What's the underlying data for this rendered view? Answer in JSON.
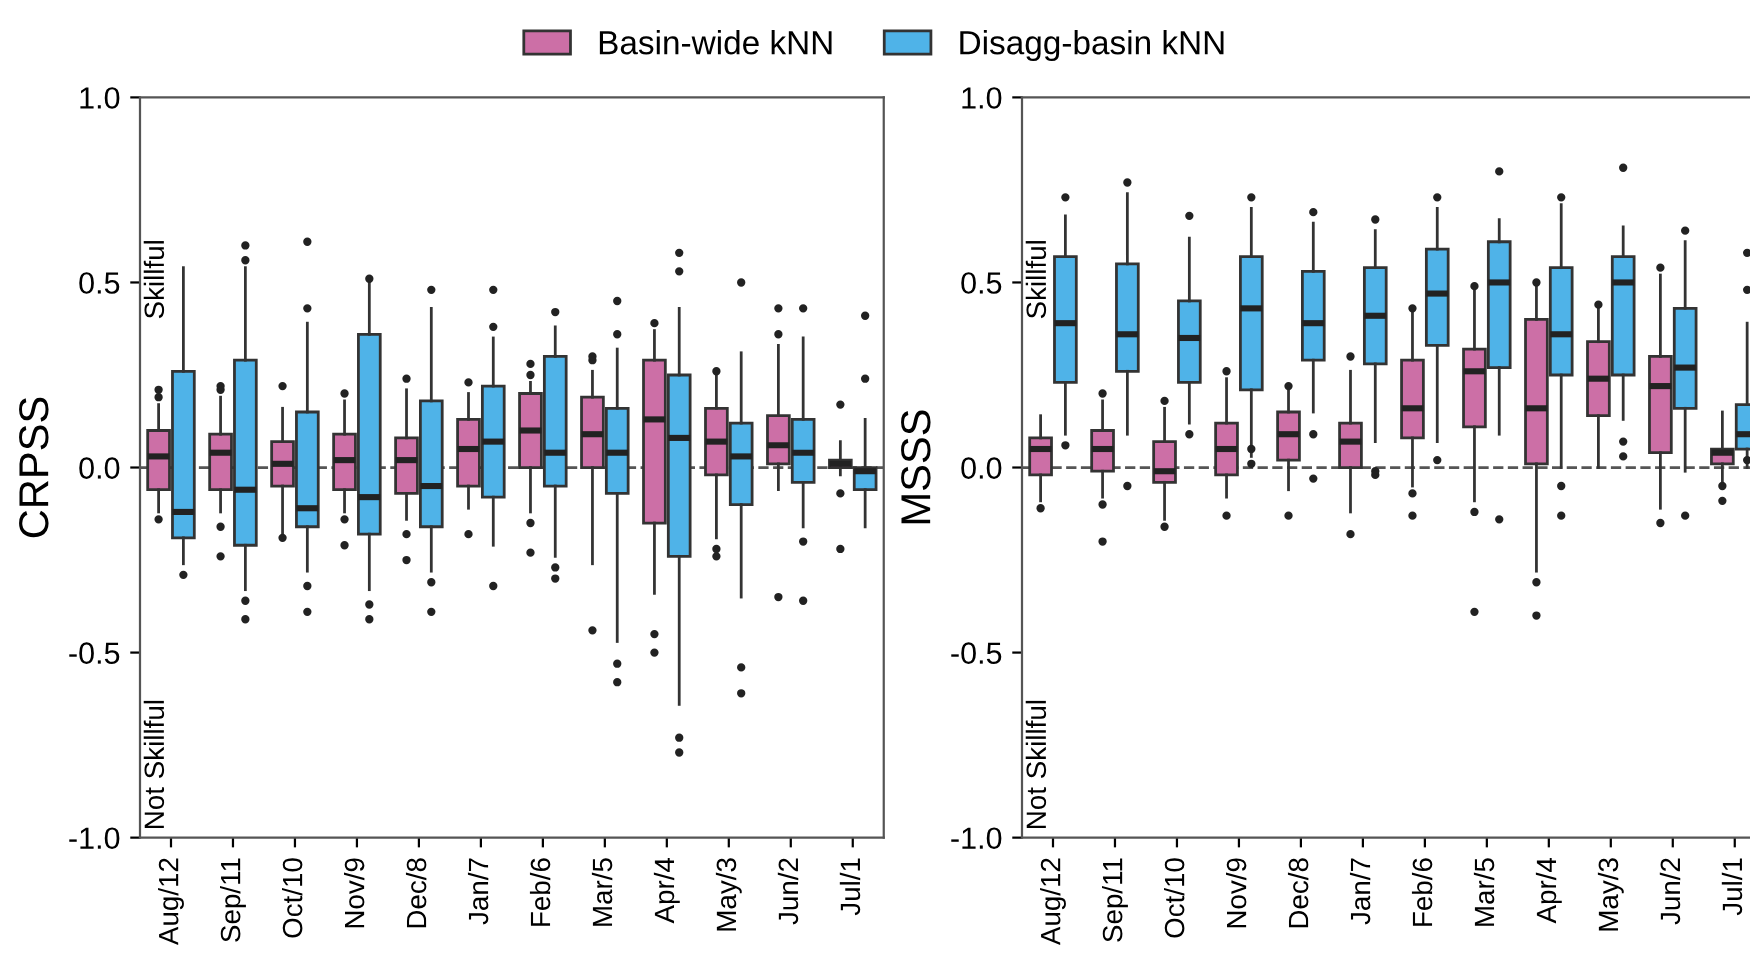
{
  "chart_data": [
    {
      "type": "box",
      "ylabel": "CRPSS",
      "legend": "top",
      "grid": false,
      "categories": [
        "Aug/12",
        "Sep/11",
        "Oct/10",
        "Nov/9",
        "Dec/8",
        "Jan/7",
        "Feb/6",
        "Mar/5",
        "Apr/4",
        "May/3",
        "Jun/2",
        "Jul/1"
      ],
      "ylim": [
        -1,
        1
      ],
      "yticks": [
        {
          "value": -1,
          "label": "-1.0"
        },
        {
          "value": -0.5,
          "label": "-0.5"
        },
        {
          "value": 0,
          "label": "0.0"
        },
        {
          "value": 0.5,
          "label": "0.5"
        },
        {
          "value": 1,
          "label": "1.0"
        }
      ],
      "ref_lines": [
        {
          "axis": "y",
          "value": 0,
          "line_style": "dashed",
          "color": "#555555"
        }
      ],
      "annotations": [
        "Skillful",
        "Not Skillful"
      ],
      "series": [
        {
          "name": "Basin-wide kNN",
          "color": "#cc6fa6",
          "boxes": [
            {
              "low": -0.12,
              "q1": -0.06,
              "median": 0.03,
              "q3": 0.1,
              "high": 0.17,
              "outliers": [
                0.19,
                0.21,
                -0.14
              ]
            },
            {
              "low": -0.12,
              "q1": -0.06,
              "median": 0.04,
              "q3": 0.09,
              "high": 0.19,
              "outliers": [
                0.21,
                0.22,
                -0.16,
                -0.24
              ]
            },
            {
              "low": -0.18,
              "q1": -0.05,
              "median": 0.01,
              "q3": 0.07,
              "high": 0.16,
              "outliers": [
                0.22,
                -0.19
              ]
            },
            {
              "low": -0.12,
              "q1": -0.06,
              "median": 0.02,
              "q3": 0.09,
              "high": 0.18,
              "outliers": [
                0.2,
                -0.14,
                -0.21
              ]
            },
            {
              "low": -0.14,
              "q1": -0.07,
              "median": 0.02,
              "q3": 0.08,
              "high": 0.21,
              "outliers": [
                0.24,
                -0.18,
                -0.25
              ]
            },
            {
              "low": -0.11,
              "q1": -0.05,
              "median": 0.05,
              "q3": 0.13,
              "high": 0.2,
              "outliers": [
                0.23,
                -0.18
              ]
            },
            {
              "low": -0.12,
              "q1": 0.0,
              "median": 0.1,
              "q3": 0.2,
              "high": 0.23,
              "outliers": [
                0.25,
                0.28,
                -0.15,
                -0.23
              ]
            },
            {
              "low": -0.26,
              "q1": 0.0,
              "median": 0.09,
              "q3": 0.19,
              "high": 0.26,
              "outliers": [
                0.29,
                0.3,
                -0.44
              ]
            },
            {
              "low": -0.34,
              "q1": -0.15,
              "median": 0.13,
              "q3": 0.29,
              "high": 0.37,
              "outliers": [
                0.39,
                -0.45,
                -0.5
              ]
            },
            {
              "low": -0.19,
              "q1": -0.02,
              "median": 0.07,
              "q3": 0.16,
              "high": 0.25,
              "outliers": [
                0.26,
                -0.22,
                -0.24
              ]
            },
            {
              "low": -0.06,
              "q1": 0.01,
              "median": 0.06,
              "q3": 0.14,
              "high": 0.33,
              "outliers": [
                0.36,
                0.43,
                -0.35
              ]
            },
            {
              "low": -0.02,
              "q1": 0.0,
              "median": 0.01,
              "q3": 0.02,
              "high": 0.07,
              "outliers": [
                0.17,
                -0.07,
                -0.22
              ]
            }
          ]
        },
        {
          "name": "Disagg-basin kNN",
          "color": "#4fb3e8",
          "boxes": [
            {
              "low": -0.26,
              "q1": -0.19,
              "median": -0.12,
              "q3": 0.26,
              "high": 0.54,
              "outliers": [
                -0.29
              ]
            },
            {
              "low": -0.33,
              "q1": -0.21,
              "median": -0.06,
              "q3": 0.29,
              "high": 0.54,
              "outliers": [
                0.56,
                0.6,
                -0.36,
                -0.41
              ]
            },
            {
              "low": -0.28,
              "q1": -0.16,
              "median": -0.11,
              "q3": 0.15,
              "high": 0.39,
              "outliers": [
                0.43,
                0.61,
                -0.32,
                -0.39
              ]
            },
            {
              "low": -0.33,
              "q1": -0.18,
              "median": -0.08,
              "q3": 0.36,
              "high": 0.5,
              "outliers": [
                0.51,
                -0.37,
                -0.41
              ]
            },
            {
              "low": -0.28,
              "q1": -0.16,
              "median": -0.05,
              "q3": 0.18,
              "high": 0.43,
              "outliers": [
                0.48,
                -0.31,
                -0.39
              ]
            },
            {
              "low": -0.21,
              "q1": -0.08,
              "median": 0.07,
              "q3": 0.22,
              "high": 0.35,
              "outliers": [
                0.38,
                0.48,
                -0.32
              ]
            },
            {
              "low": -0.24,
              "q1": -0.05,
              "median": 0.04,
              "q3": 0.3,
              "high": 0.38,
              "outliers": [
                0.42,
                -0.27,
                -0.3
              ]
            },
            {
              "low": -0.47,
              "q1": -0.07,
              "median": 0.04,
              "q3": 0.16,
              "high": 0.32,
              "outliers": [
                0.36,
                0.45,
                -0.53,
                -0.58
              ]
            },
            {
              "low": -0.64,
              "q1": -0.24,
              "median": 0.08,
              "q3": 0.25,
              "high": 0.43,
              "outliers": [
                0.53,
                0.58,
                -0.73,
                -0.77
              ]
            },
            {
              "low": -0.35,
              "q1": -0.1,
              "median": 0.03,
              "q3": 0.12,
              "high": 0.31,
              "outliers": [
                0.5,
                -0.54,
                -0.61
              ]
            },
            {
              "low": -0.16,
              "q1": -0.04,
              "median": 0.04,
              "q3": 0.13,
              "high": 0.35,
              "outliers": [
                0.43,
                -0.2,
                -0.36
              ]
            },
            {
              "low": -0.16,
              "q1": -0.06,
              "median": -0.01,
              "q3": 0.0,
              "high": 0.13,
              "outliers": [
                0.24,
                0.41
              ]
            }
          ]
        }
      ]
    },
    {
      "type": "box",
      "ylabel": "MSSS",
      "grid": false,
      "categories": [
        "Aug/12",
        "Sep/11",
        "Oct/10",
        "Nov/9",
        "Dec/8",
        "Jan/7",
        "Feb/6",
        "Mar/5",
        "Apr/4",
        "May/3",
        "Jun/2",
        "Jul/1"
      ],
      "ylim": [
        -1,
        1
      ],
      "yticks": [
        {
          "value": -1,
          "label": "-1.0"
        },
        {
          "value": -0.5,
          "label": "-0.5"
        },
        {
          "value": 0,
          "label": "0.0"
        },
        {
          "value": 0.5,
          "label": "0.5"
        },
        {
          "value": 1,
          "label": "1.0"
        }
      ],
      "ref_lines": [
        {
          "axis": "y",
          "value": 0,
          "line_style": "dashed",
          "color": "#555555"
        }
      ],
      "annotations": [
        "Skillful",
        "Not Skillful"
      ],
      "series": [
        {
          "color": "#cc6fa6",
          "boxes": [
            {
              "low": -0.09,
              "q1": -0.02,
              "median": 0.05,
              "q3": 0.08,
              "high": 0.14,
              "outliers": [
                -0.11
              ]
            },
            {
              "low": -0.08,
              "q1": -0.01,
              "median": 0.05,
              "q3": 0.1,
              "high": 0.18,
              "outliers": [
                0.2,
                -0.1,
                -0.2
              ]
            },
            {
              "low": -0.14,
              "q1": -0.04,
              "median": -0.01,
              "q3": 0.07,
              "high": 0.16,
              "outliers": [
                0.18,
                -0.16
              ]
            },
            {
              "low": -0.08,
              "q1": -0.02,
              "median": 0.05,
              "q3": 0.12,
              "high": 0.24,
              "outliers": [
                0.26,
                -0.13
              ]
            },
            {
              "low": -0.06,
              "q1": 0.02,
              "median": 0.09,
              "q3": 0.15,
              "high": 0.21,
              "outliers": [
                0.22,
                -0.13
              ]
            },
            {
              "low": -0.12,
              "q1": 0.0,
              "median": 0.07,
              "q3": 0.12,
              "high": 0.26,
              "outliers": [
                0.3,
                -0.18
              ]
            },
            {
              "low": -0.05,
              "q1": 0.08,
              "median": 0.16,
              "q3": 0.29,
              "high": 0.42,
              "outliers": [
                0.43,
                -0.07,
                -0.13
              ]
            },
            {
              "low": -0.09,
              "q1": 0.11,
              "median": 0.26,
              "q3": 0.32,
              "high": 0.48,
              "outliers": [
                0.49,
                -0.12,
                -0.39
              ]
            },
            {
              "low": -0.28,
              "q1": 0.01,
              "median": 0.16,
              "q3": 0.4,
              "high": 0.49,
              "outliers": [
                0.5,
                -0.31,
                -0.4
              ]
            },
            {
              "low": 0.0,
              "q1": 0.14,
              "median": 0.24,
              "q3": 0.34,
              "high": 0.43,
              "outliers": [
                0.44
              ]
            },
            {
              "low": -0.11,
              "q1": 0.04,
              "median": 0.22,
              "q3": 0.3,
              "high": 0.52,
              "outliers": [
                0.54,
                -0.15
              ]
            },
            {
              "low": -0.04,
              "q1": 0.01,
              "median": 0.04,
              "q3": 0.05,
              "high": 0.15,
              "outliers": [
                -0.05,
                -0.09
              ]
            }
          ]
        },
        {
          "color": "#4fb3e8",
          "boxes": [
            {
              "low": 0.09,
              "q1": 0.23,
              "median": 0.39,
              "q3": 0.57,
              "high": 0.68,
              "outliers": [
                0.73,
                0.06
              ]
            },
            {
              "low": 0.09,
              "q1": 0.26,
              "median": 0.36,
              "q3": 0.55,
              "high": 0.74,
              "outliers": [
                0.77,
                -0.05
              ]
            },
            {
              "low": 0.12,
              "q1": 0.23,
              "median": 0.35,
              "q3": 0.45,
              "high": 0.62,
              "outliers": [
                0.68,
                0.09
              ]
            },
            {
              "low": 0.03,
              "q1": 0.21,
              "median": 0.43,
              "q3": 0.57,
              "high": 0.7,
              "outliers": [
                0.73,
                0.05,
                0.01
              ]
            },
            {
              "low": 0.15,
              "q1": 0.29,
              "median": 0.39,
              "q3": 0.53,
              "high": 0.66,
              "outliers": [
                0.69,
                0.09,
                -0.03
              ]
            },
            {
              "low": 0.07,
              "q1": 0.28,
              "median": 0.41,
              "q3": 0.54,
              "high": 0.64,
              "outliers": [
                0.67,
                -0.01,
                -0.02
              ]
            },
            {
              "low": 0.07,
              "q1": 0.33,
              "median": 0.47,
              "q3": 0.59,
              "high": 0.7,
              "outliers": [
                0.73,
                0.02
              ]
            },
            {
              "low": 0.09,
              "q1": 0.27,
              "median": 0.5,
              "q3": 0.61,
              "high": 0.67,
              "outliers": [
                0.8,
                -0.14
              ]
            },
            {
              "low": 0.0,
              "q1": 0.25,
              "median": 0.36,
              "q3": 0.54,
              "high": 0.71,
              "outliers": [
                0.73,
                -0.05,
                -0.13
              ]
            },
            {
              "low": 0.13,
              "q1": 0.25,
              "median": 0.5,
              "q3": 0.57,
              "high": 0.65,
              "outliers": [
                0.81,
                0.07,
                0.03
              ]
            },
            {
              "low": -0.01,
              "q1": 0.16,
              "median": 0.27,
              "q3": 0.43,
              "high": 0.61,
              "outliers": [
                0.64,
                -0.13
              ]
            },
            {
              "low": 0.0,
              "q1": 0.05,
              "median": 0.09,
              "q3": 0.17,
              "high": 0.39,
              "outliers": [
                0.48,
                0.58,
                0.02
              ]
            }
          ]
        }
      ]
    }
  ]
}
